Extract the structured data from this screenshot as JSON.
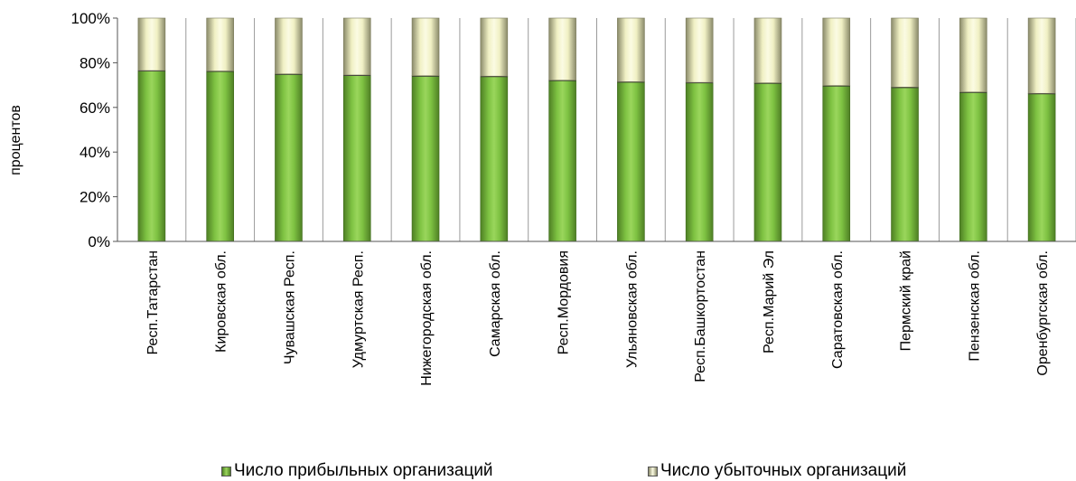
{
  "chart_data": {
    "type": "bar",
    "stacked": true,
    "title": "",
    "xlabel": "",
    "ylabel": "процентов",
    "ylim": [
      0,
      100
    ],
    "yticks": [
      "0%",
      "20%",
      "40%",
      "60%",
      "80%",
      "100%"
    ],
    "grid": "vertical",
    "legend_position": "bottom",
    "categories": [
      "Респ.Татарстан",
      "Кировская обл.",
      "Чувашская Респ.",
      "Удмуртская Респ.",
      "Нижегородская обл.",
      "Самарская обл.",
      "Респ.Мордовия",
      "Ульяновская обл.",
      "Респ.Башкортостан",
      "Респ.Марий Эл",
      "Саратовская обл.",
      "Пермский край",
      "Пензенская обл.",
      "Оренбургская обл."
    ],
    "series": [
      {
        "name": "Число прибыльных организаций",
        "color": "#7ec242",
        "values": [
          76.5,
          76.3,
          75.0,
          74.5,
          74.2,
          74.0,
          72.2,
          71.5,
          71.2,
          71.0,
          69.8,
          69.1,
          66.9,
          66.3
        ]
      },
      {
        "name": "Число убыточных организаций",
        "color": "#f2f2c8",
        "values": [
          23.5,
          23.7,
          25.0,
          25.5,
          25.8,
          26.0,
          27.8,
          28.5,
          28.8,
          29.0,
          30.2,
          30.9,
          33.1,
          33.7
        ]
      }
    ]
  }
}
